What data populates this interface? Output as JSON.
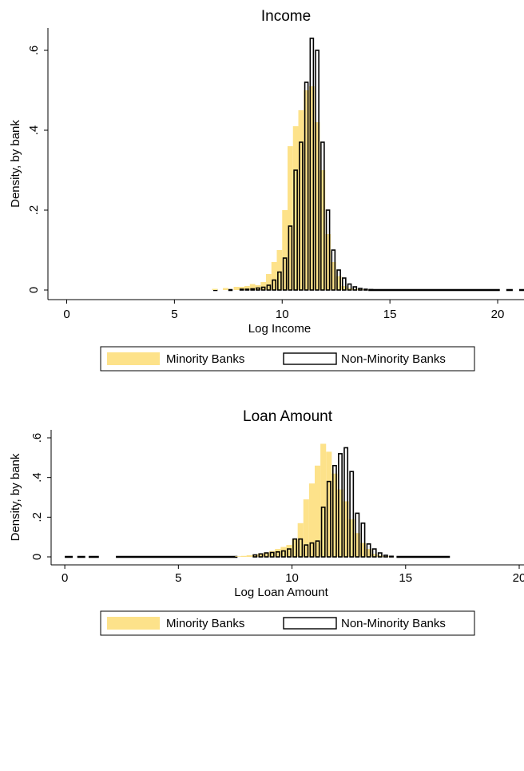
{
  "chart_data": [
    {
      "type": "bar",
      "title": "Income",
      "xlabel": "Log Income",
      "ylabel": "Density, by bank",
      "xlim": [
        -0.5,
        21
      ],
      "ylim": [
        0,
        0.65
      ],
      "xticks": [
        0,
        5,
        10,
        15,
        20
      ],
      "yticks": [
        0,
        0.2,
        0.4,
        0.6
      ],
      "ytick_labels": [
        "0",
        ".2",
        ".4",
        ".6"
      ],
      "bin_width": 0.25,
      "legend": {
        "placement": "bottom",
        "entries": [
          "Minority Banks",
          "Non-Minority Banks"
        ]
      },
      "series": [
        {
          "name": "Minority Banks",
          "style": "filled",
          "color": "#fde28a",
          "x": [
            6.875,
            7.375,
            7.875,
            8.125,
            8.375,
            8.625,
            8.875,
            9.125,
            9.375,
            9.625,
            9.875,
            10.125,
            10.375,
            10.625,
            10.875,
            11.125,
            11.375,
            11.625,
            11.875,
            12.125,
            12.375,
            12.625,
            12.875,
            13.125,
            13.375,
            13.625,
            13.875
          ],
          "values": [
            0.003,
            0.005,
            0.008,
            0.008,
            0.01,
            0.015,
            0.012,
            0.02,
            0.04,
            0.07,
            0.1,
            0.2,
            0.36,
            0.41,
            0.45,
            0.5,
            0.51,
            0.42,
            0.3,
            0.14,
            0.07,
            0.035,
            0.01,
            0.005,
            0.003,
            0.002,
            0.001
          ]
        },
        {
          "name": "Non-Minority Banks",
          "style": "outline",
          "color": "#000000",
          "x": [
            8.125,
            8.375,
            8.625,
            8.875,
            9.125,
            9.375,
            9.625,
            9.875,
            10.125,
            10.375,
            10.625,
            10.875,
            11.125,
            11.375,
            11.625,
            11.875,
            12.125,
            12.375,
            12.625,
            12.875,
            13.125,
            13.375,
            13.625,
            13.875,
            14.125
          ],
          "values": [
            0.002,
            0.002,
            0.003,
            0.005,
            0.007,
            0.012,
            0.025,
            0.045,
            0.08,
            0.16,
            0.3,
            0.37,
            0.52,
            0.63,
            0.6,
            0.37,
            0.2,
            0.1,
            0.05,
            0.03,
            0.015,
            0.008,
            0.004,
            0.002,
            0.001
          ]
        }
      ],
      "dashed_tails": {
        "segments": [
          [
            6.8,
            7.0
          ],
          [
            7.5,
            7.7
          ],
          [
            14.0,
            20.1
          ],
          [
            20.4,
            20.7
          ],
          [
            21.0,
            21.3
          ]
        ]
      }
    },
    {
      "type": "bar",
      "title": "Loan Amount",
      "xlabel": "Log Loan Amount",
      "ylabel": "Density, by bank",
      "xlim": [
        -0.25,
        20
      ],
      "ylim": [
        0,
        0.6
      ],
      "xticks": [
        0,
        5,
        10,
        15,
        20
      ],
      "yticks": [
        0,
        0.2,
        0.4,
        0.6
      ],
      "ytick_labels": [
        "0",
        ".2",
        ".4",
        ".6"
      ],
      "bin_width": 0.25,
      "legend": {
        "placement": "bottom",
        "entries": [
          "Minority Banks",
          "Non-Minority Banks"
        ]
      },
      "series": [
        {
          "name": "Minority Banks",
          "style": "filled",
          "color": "#fde28a",
          "x": [
            7.625,
            7.875,
            8.125,
            8.375,
            8.625,
            8.875,
            9.125,
            9.375,
            9.625,
            9.875,
            10.125,
            10.375,
            10.625,
            10.875,
            11.125,
            11.375,
            11.625,
            11.875,
            12.125,
            12.375,
            12.625,
            12.875,
            13.125,
            13.375,
            13.625,
            13.875,
            14.125,
            14.375
          ],
          "values": [
            0.003,
            0.005,
            0.008,
            0.012,
            0.018,
            0.022,
            0.03,
            0.04,
            0.05,
            0.06,
            0.09,
            0.17,
            0.29,
            0.37,
            0.46,
            0.57,
            0.53,
            0.42,
            0.34,
            0.28,
            0.19,
            0.12,
            0.07,
            0.04,
            0.015,
            0.008,
            0.004,
            0.002
          ]
        },
        {
          "name": "Non-Minority Banks",
          "style": "outline",
          "color": "#000000",
          "x": [
            8.375,
            8.625,
            8.875,
            9.125,
            9.375,
            9.625,
            9.875,
            10.125,
            10.375,
            10.625,
            10.875,
            11.125,
            11.375,
            11.625,
            11.875,
            12.125,
            12.375,
            12.625,
            12.875,
            13.125,
            13.375,
            13.625,
            13.875,
            14.125,
            14.375
          ],
          "values": [
            0.01,
            0.015,
            0.02,
            0.022,
            0.025,
            0.03,
            0.04,
            0.09,
            0.09,
            0.06,
            0.07,
            0.08,
            0.25,
            0.38,
            0.46,
            0.52,
            0.55,
            0.43,
            0.22,
            0.17,
            0.065,
            0.04,
            0.02,
            0.008,
            0.003
          ]
        }
      ],
      "dashed_tails": {
        "segments": [
          [
            0,
            0.35
          ],
          [
            0.55,
            0.9
          ],
          [
            1.05,
            1.5
          ],
          [
            2.25,
            7.6
          ],
          [
            14.6,
            16.95
          ]
        ]
      }
    }
  ]
}
